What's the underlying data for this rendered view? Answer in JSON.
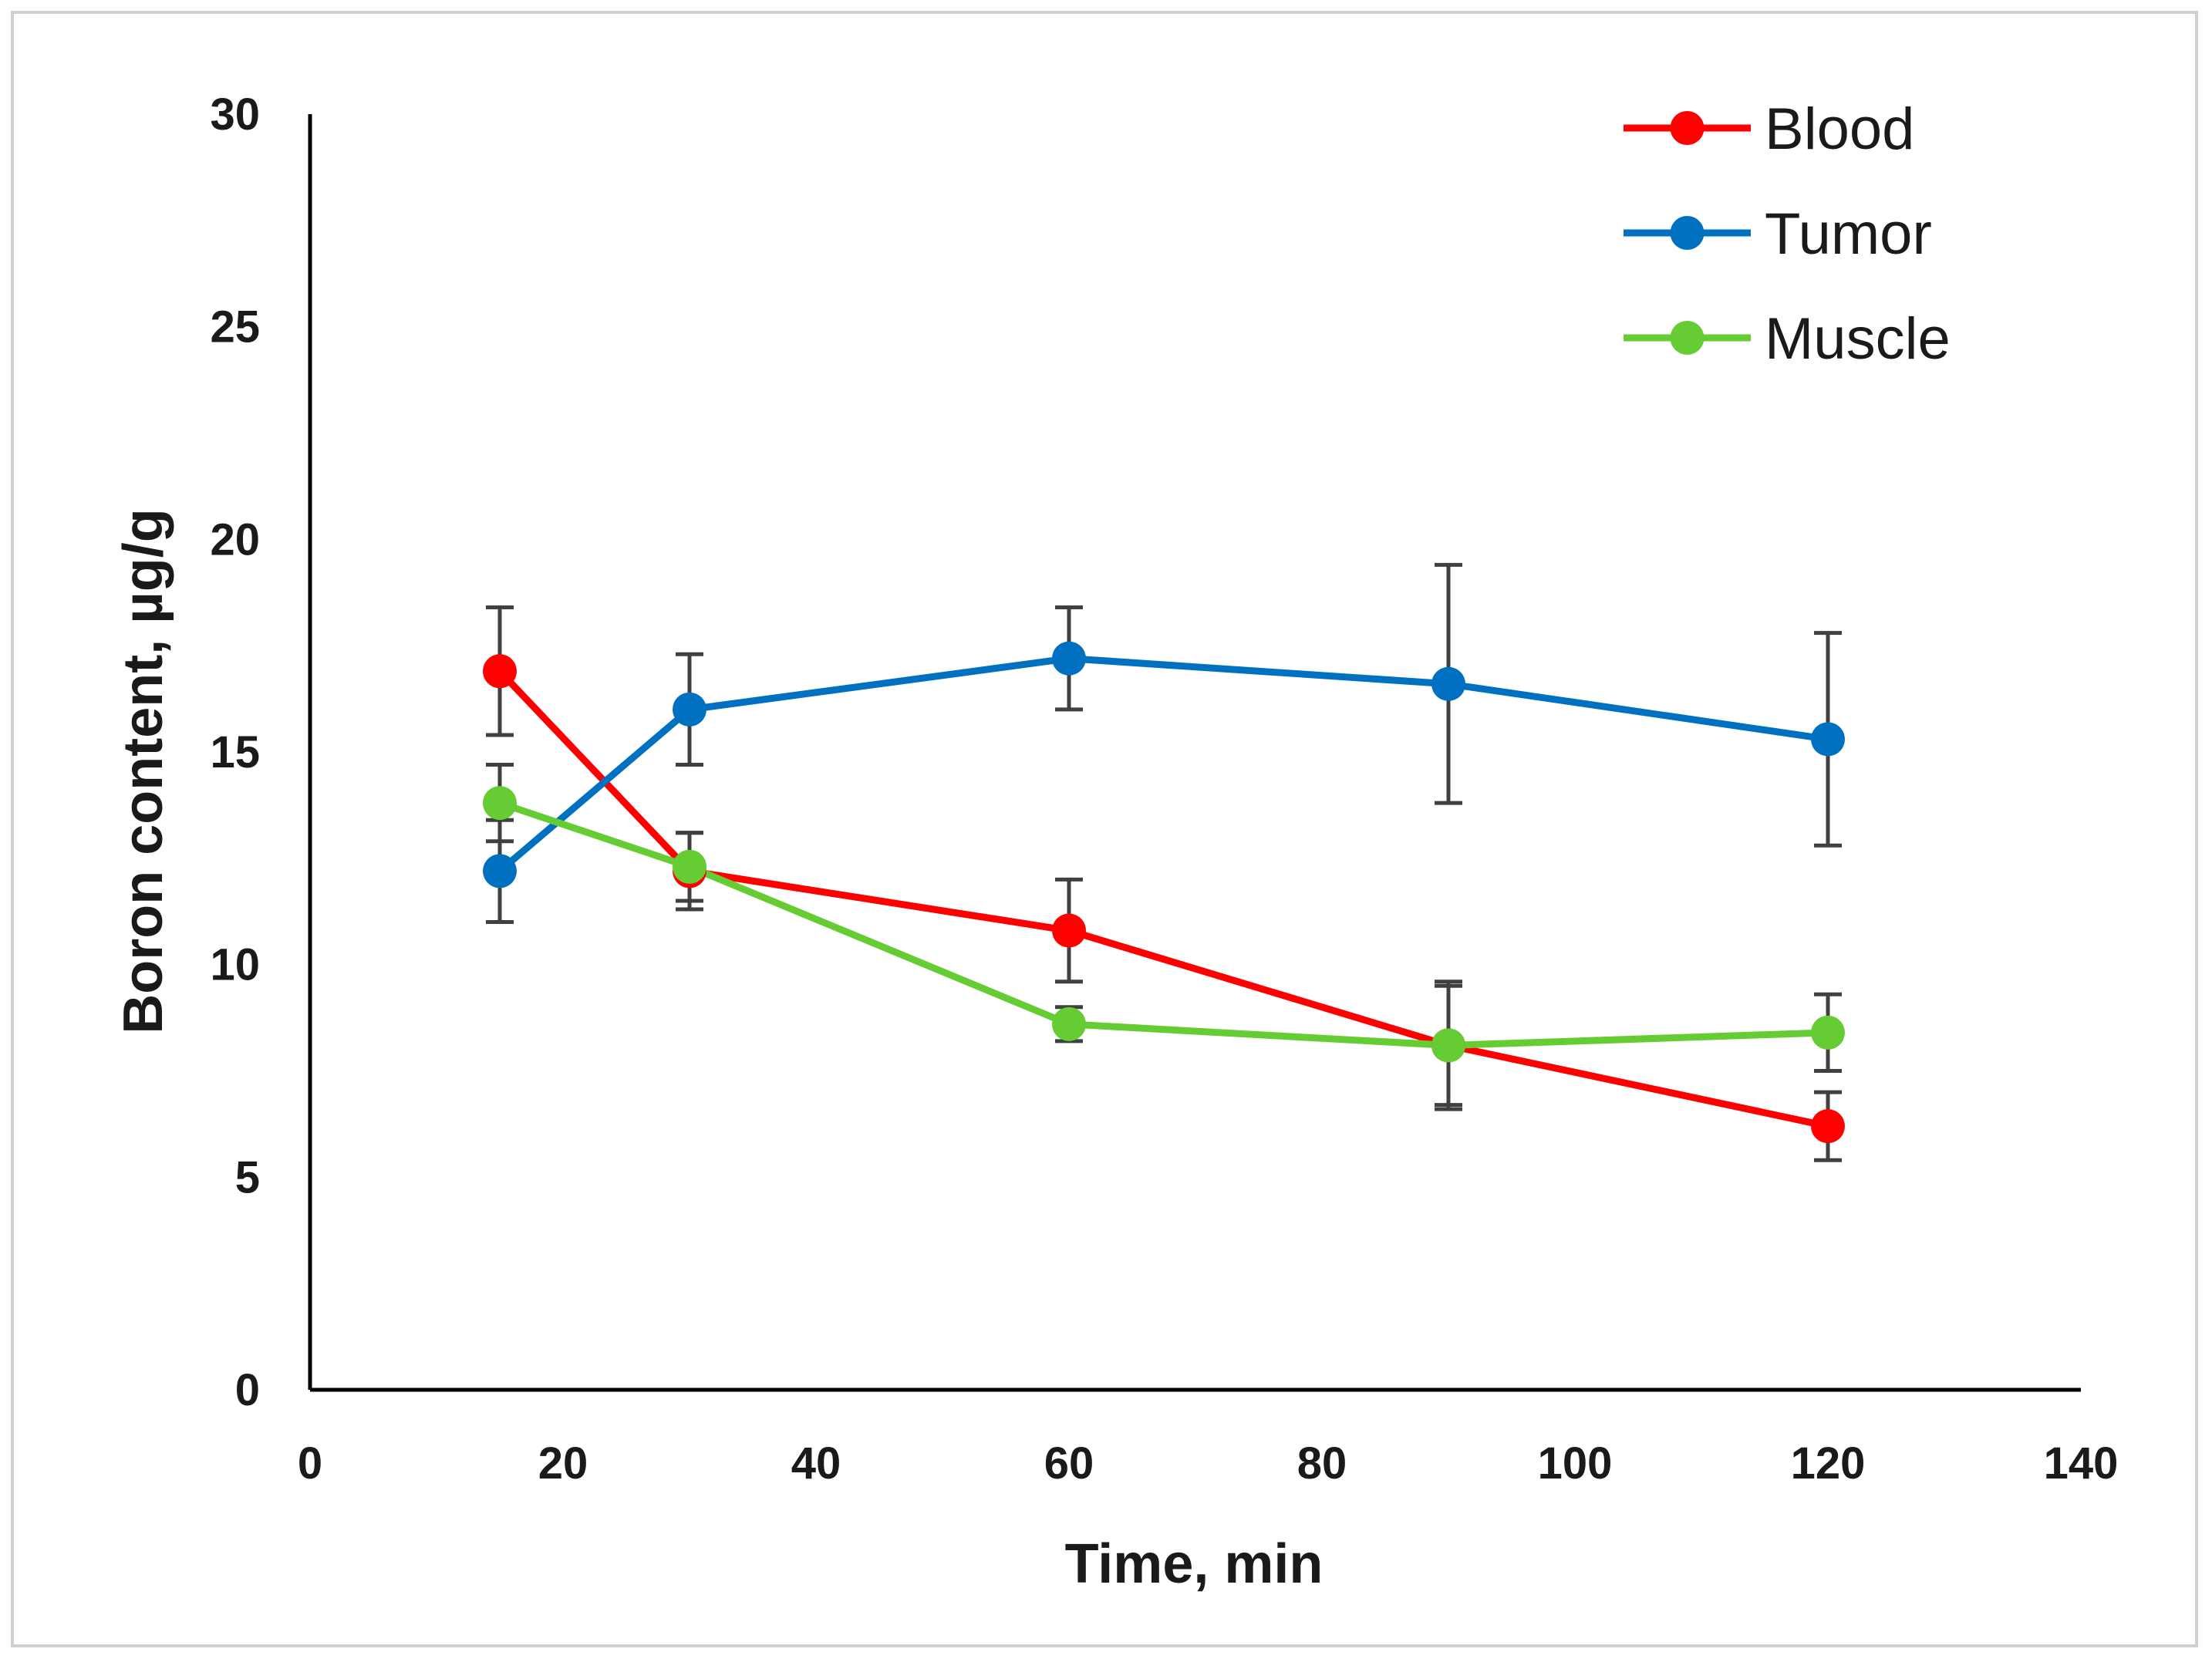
{
  "chart_data": {
    "type": "line",
    "xlabel": "Time, min",
    "ylabel": "Boron content, µg/g",
    "xlim": [
      0,
      140
    ],
    "ylim": [
      0,
      30
    ],
    "x_ticks": [
      0,
      20,
      40,
      60,
      80,
      100,
      120,
      140
    ],
    "y_ticks": [
      0,
      5,
      10,
      15,
      20,
      25,
      30
    ],
    "grid": false,
    "legend_position": "top-right",
    "x": [
      15,
      30,
      60,
      90,
      120
    ],
    "series": [
      {
        "name": "Blood",
        "color": "#ff0000",
        "values": [
          16.9,
          12.2,
          10.8,
          8.1,
          6.2
        ],
        "error": [
          1.5,
          0.9,
          1.2,
          1.4,
          0.8
        ]
      },
      {
        "name": "Tumor",
        "color": "#0070c0",
        "values": [
          12.2,
          16.0,
          17.2,
          16.6,
          15.3
        ],
        "error": [
          1.2,
          1.3,
          1.2,
          2.8,
          2.5
        ]
      },
      {
        "name": "Muscle",
        "color": "#66cc33",
        "values": [
          13.8,
          12.3,
          8.6,
          8.1,
          8.4
        ],
        "error": [
          0.9,
          0.8,
          0.4,
          1.5,
          0.9
        ]
      }
    ]
  }
}
